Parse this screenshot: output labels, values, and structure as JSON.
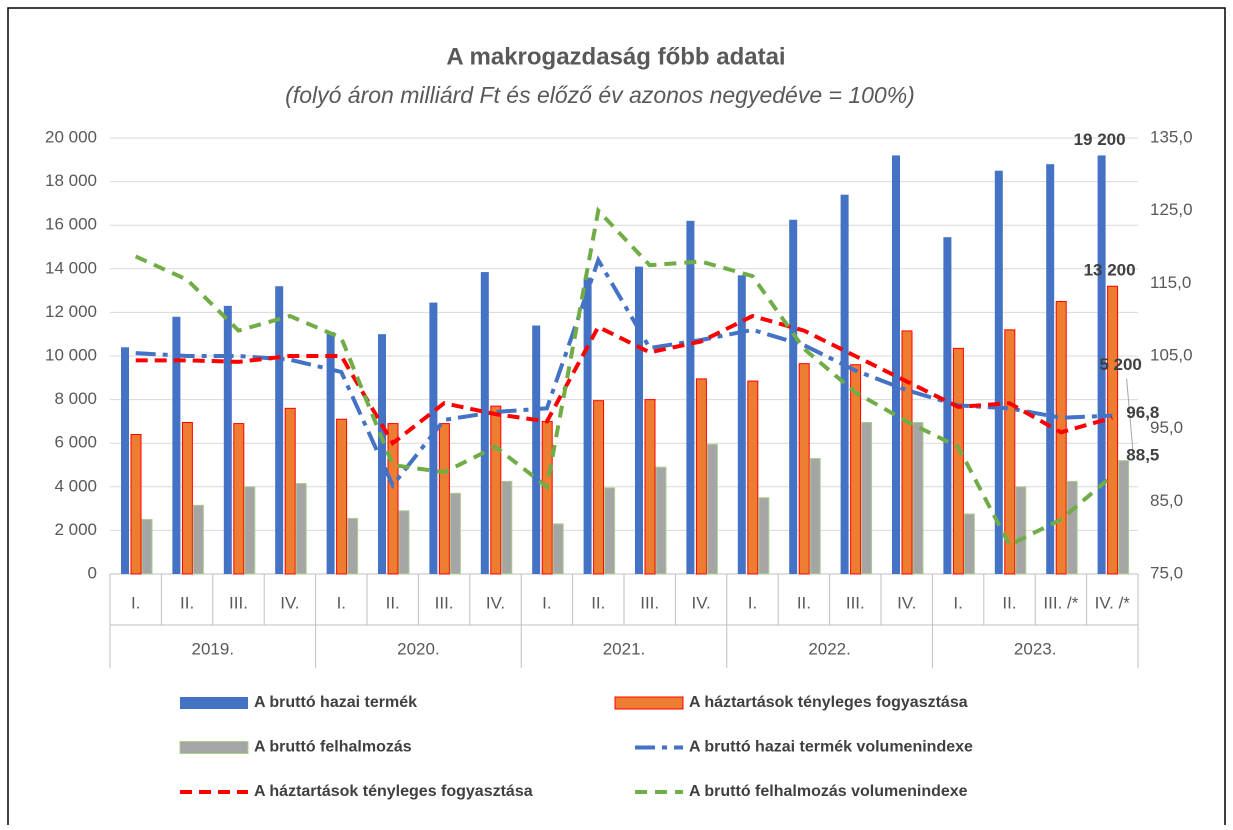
{
  "chart_data": {
    "type": "bar_line",
    "title": "A makrogazdaság főbb adatai",
    "subtitle": "(folyó áron milliárd Ft és előző év azonos negyedéve = 100%)",
    "categories": [
      "I.",
      "II.",
      "III.",
      "IV.",
      "I.",
      "II.",
      "III.",
      "IV.",
      "I.",
      "II.",
      "III.",
      "IV.",
      "I.",
      "II.",
      "III.",
      "IV.",
      "I.",
      "II.",
      "III. /*",
      "IV. /*"
    ],
    "category_groups": [
      "2019.",
      "2020.",
      "2021.",
      "2022.",
      "2023."
    ],
    "ylim": [
      0,
      20000
    ],
    "yticks": [
      0,
      {
        "value": 2000,
        "label": "2 000"
      },
      {
        "value": 4000,
        "label": "4 000"
      },
      {
        "value": 6000,
        "label": "6 000"
      },
      {
        "value": 8000,
        "label": "8 000"
      },
      {
        "value": 10000,
        "label": "10 000"
      },
      {
        "value": 12000,
        "label": "12 000"
      },
      {
        "value": 14000,
        "label": "14 000"
      },
      {
        "value": 16000,
        "label": "16 000"
      },
      {
        "value": 18000,
        "label": "18 000"
      },
      {
        "value": 20000,
        "label": "20 000"
      }
    ],
    "y2lim": [
      75,
      135
    ],
    "y2ticks": [
      {
        "value": 75,
        "label": "75,0"
      },
      {
        "value": 85,
        "label": "85,0"
      },
      {
        "value": 95,
        "label": "95,0"
      },
      {
        "value": 105,
        "label": "105,0"
      },
      {
        "value": 115,
        "label": "115,0"
      },
      {
        "value": 125,
        "label": "125,0"
      },
      {
        "value": 135,
        "label": "135,0"
      }
    ],
    "grid": true,
    "series": [
      {
        "name": "A bruttó hazai termék",
        "kind": "bar",
        "color": "#4472c4",
        "values": [
          10400,
          11800,
          12300,
          13200,
          11100,
          11000,
          12450,
          13850,
          11400,
          13600,
          14100,
          16200,
          13700,
          16250,
          17400,
          19200,
          15450,
          18500,
          18800,
          19200
        ],
        "value_labels": [
          null,
          null,
          null,
          null,
          null,
          null,
          null,
          null,
          null,
          null,
          null,
          null,
          null,
          null,
          null,
          null,
          null,
          null,
          null,
          "19 200"
        ]
      },
      {
        "name": "A háztartások tényleges fogyasztása",
        "kind": "bar",
        "color": "#ed7d31",
        "values": [
          6400,
          6950,
          6900,
          7600,
          7100,
          6900,
          6900,
          7700,
          7000,
          7950,
          8000,
          8950,
          8850,
          9650,
          9600,
          11150,
          10350,
          11200,
          12500,
          13200
        ],
        "value_labels": [
          null,
          null,
          null,
          null,
          null,
          null,
          null,
          null,
          null,
          null,
          null,
          null,
          null,
          null,
          null,
          null,
          null,
          null,
          null,
          "13 200"
        ]
      },
      {
        "name": "A bruttó felhalmozás",
        "kind": "bar",
        "color": "#a5a5a5",
        "values": [
          2500,
          3150,
          4000,
          4150,
          2550,
          2900,
          3700,
          4250,
          2300,
          3950,
          4900,
          5950,
          3500,
          5300,
          6950,
          6950,
          2750,
          4000,
          4250,
          5200
        ],
        "value_labels": [
          null,
          null,
          null,
          null,
          null,
          null,
          null,
          null,
          null,
          null,
          null,
          null,
          null,
          null,
          null,
          null,
          null,
          null,
          null,
          "5 200"
        ]
      },
      {
        "name": "A bruttó hazai termék volumenindexe",
        "kind": "line",
        "axis": "y2",
        "color": "#4472c4",
        "values": [
          105.4,
          105.0,
          105.0,
          104.5,
          102.8,
          87.2,
          96.2,
          97.3,
          97.8,
          118.2,
          106.1,
          107.2,
          108.6,
          106.5,
          103.0,
          100.3,
          98.2,
          97.8,
          96.5,
          96.8
        ],
        "value_labels": [
          null,
          null,
          null,
          null,
          null,
          null,
          null,
          null,
          null,
          null,
          null,
          null,
          null,
          null,
          null,
          null,
          null,
          null,
          null,
          "96,8"
        ]
      },
      {
        "name": "A háztartások tényleges fogyasztása",
        "kind": "line",
        "axis": "y2",
        "color": "#ff0000",
        "values": [
          104.4,
          104.4,
          104.2,
          105.0,
          105.0,
          93.0,
          98.5,
          97.0,
          96.0,
          109.0,
          105.5,
          107.0,
          110.5,
          108.5,
          105.0,
          101.5,
          98.0,
          98.5,
          94.5,
          96.5
        ]
      },
      {
        "name": "A bruttó felhalmozás volumenindexe",
        "kind": "line",
        "axis": "y2",
        "color": "#70ad47",
        "values": [
          118.7,
          115.5,
          108.5,
          110.5,
          107.5,
          90.0,
          89.0,
          92.5,
          87.0,
          125.0,
          117.5,
          118.0,
          116.0,
          106.0,
          100.0,
          96.0,
          92.5,
          79.0,
          82.5,
          88.5
        ],
        "value_labels": [
          null,
          null,
          null,
          null,
          null,
          null,
          null,
          null,
          null,
          null,
          null,
          null,
          null,
          null,
          null,
          null,
          null,
          null,
          null,
          "88,5"
        ]
      }
    ]
  }
}
